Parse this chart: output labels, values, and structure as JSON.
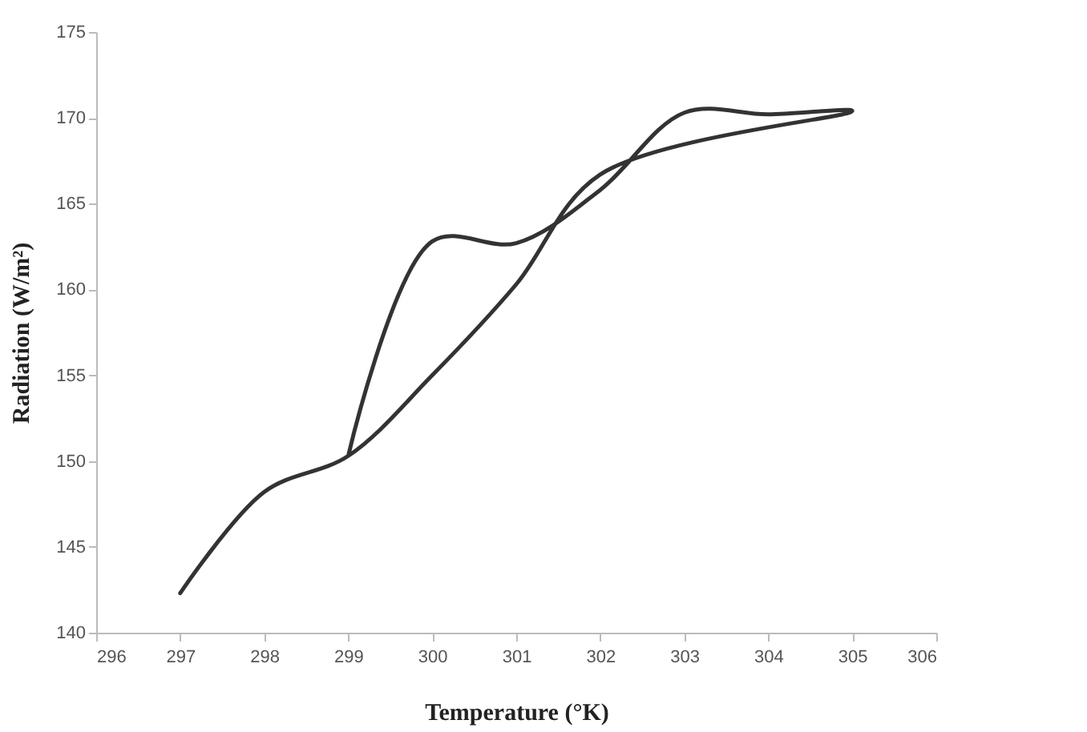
{
  "chart_data": {
    "type": "line",
    "xlabel": "Temperature (°K)",
    "ylabel": "Radiation (W/m²)",
    "x": [
      297,
      298,
      299,
      300,
      301,
      302,
      305,
      304,
      303,
      302,
      301,
      300,
      299
    ],
    "series": [
      {
        "color": "#333333",
        "values": [
          142.3,
          148.2,
          150.3,
          155,
          160.3,
          166.7,
          170.4,
          170.2,
          170.3,
          165.8,
          162.7,
          162.8,
          150.3
        ]
      }
    ],
    "xlim": [
      296,
      306
    ],
    "xticks": [
      296,
      297,
      298,
      299,
      300,
      301,
      302,
      303,
      304,
      305,
      306
    ],
    "ylim": [
      140,
      175
    ],
    "yticks": [
      140,
      145,
      150,
      155,
      160,
      165,
      170,
      175
    ],
    "grid": false,
    "legend": false,
    "marker": "none",
    "line_style": "solid"
  }
}
